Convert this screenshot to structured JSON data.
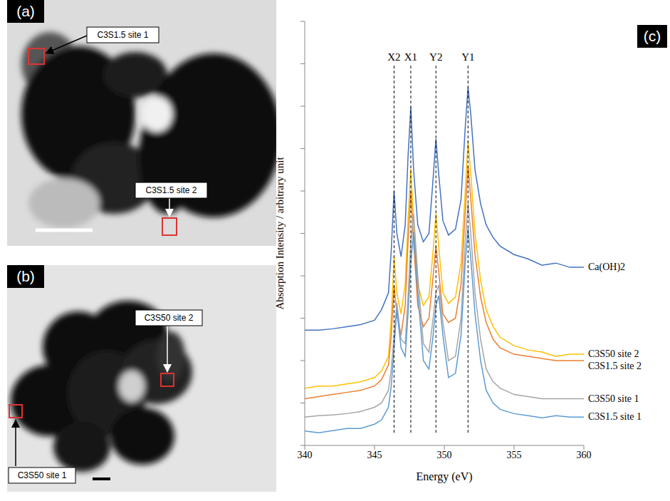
{
  "panels": [
    {
      "letter": "(a)",
      "labels": [
        "C3S1.5 site 1",
        "C3S1.5 site 2"
      ]
    },
    {
      "letter": "(b)",
      "labels": [
        "C3S50 site 2",
        "C3S50 site 1"
      ]
    }
  ],
  "chart_data": {
    "letter": "(c)",
    "type": "line",
    "x_label": "Energy  (eV)",
    "y_label": "Absorption Intensity / arbitrary unit",
    "xlim": [
      340,
      360
    ],
    "xticks": [
      340,
      345,
      350,
      355,
      360
    ],
    "ylim": [
      0,
      10
    ],
    "yticks": [
      0,
      1,
      2,
      3,
      4,
      5,
      6,
      7,
      8,
      9,
      10
    ],
    "tick_labels": "x",
    "x": [
      340,
      341,
      342,
      343,
      344,
      345,
      345.5,
      346,
      346.2,
      346.4,
      346.6,
      346.9,
      347.2,
      347.4,
      347.6,
      347.8,
      348.1,
      348.5,
      348.9,
      349.2,
      349.4,
      349.6,
      349.9,
      350.3,
      350.8,
      351.2,
      351.5,
      351.7,
      351.9,
      352.2,
      352.6,
      353,
      353.5,
      354,
      355,
      356,
      357,
      358,
      359,
      360
    ],
    "series": [
      {
        "name": "Ca(OH)2",
        "color": "#4472c4",
        "values": [
          2.72,
          2.72,
          2.75,
          2.8,
          2.85,
          2.95,
          3.2,
          3.6,
          4.6,
          6.0,
          5.0,
          4.45,
          5.2,
          6.8,
          7.98,
          6.5,
          5.2,
          4.8,
          5.0,
          6.3,
          7.23,
          6.4,
          5.3,
          4.96,
          5.1,
          5.8,
          7.5,
          8.45,
          7.8,
          6.5,
          5.7,
          5.2,
          4.9,
          4.7,
          4.5,
          4.4,
          4.25,
          4.3,
          4.2,
          4.2
        ]
      },
      {
        "name": "C3S50 site 2",
        "color": "#ffc000",
        "values": [
          1.35,
          1.4,
          1.4,
          1.45,
          1.5,
          1.6,
          1.75,
          2.1,
          3.0,
          4.45,
          3.6,
          3.1,
          3.8,
          5.3,
          6.52,
          5.3,
          3.8,
          3.3,
          3.5,
          4.6,
          5.46,
          4.7,
          3.6,
          3.35,
          3.5,
          4.3,
          6.0,
          7.19,
          6.4,
          5.0,
          3.9,
          3.2,
          2.8,
          2.55,
          2.35,
          2.25,
          2.2,
          2.1,
          2.15,
          2.15
        ]
      },
      {
        "name": "C3S1.5 site 2",
        "color": "#ed7d31",
        "values": [
          1.1,
          1.15,
          1.2,
          1.25,
          1.3,
          1.4,
          1.55,
          1.9,
          2.6,
          3.78,
          3.1,
          2.6,
          3.3,
          4.8,
          6.0,
          4.8,
          3.3,
          2.8,
          3.0,
          4.0,
          4.7,
          4.1,
          3.1,
          2.9,
          3.0,
          3.8,
          5.5,
          6.6,
          5.8,
          4.5,
          3.5,
          2.9,
          2.5,
          2.3,
          2.15,
          2.1,
          2.05,
          2.0,
          2.0,
          2.0
        ]
      },
      {
        "name": "C3S50 site 1",
        "color": "#a5a5a5",
        "values": [
          0.67,
          0.7,
          0.72,
          0.75,
          0.8,
          0.9,
          1.0,
          1.3,
          1.8,
          2.6,
          3.36,
          2.5,
          2.4,
          3.5,
          4.8,
          5.46,
          4.0,
          2.4,
          2.2,
          3.0,
          3.6,
          3.78,
          2.9,
          2.0,
          2.1,
          3.0,
          4.8,
          5.71,
          5.0,
          3.6,
          2.5,
          1.8,
          1.5,
          1.35,
          1.2,
          1.15,
          1.1,
          1.1,
          1.1,
          1.1
        ]
      },
      {
        "name": "C3S1.5 site 1",
        "color": "#5b9bd5",
        "values": [
          0.34,
          0.3,
          0.35,
          0.4,
          0.4,
          0.5,
          0.6,
          0.9,
          1.4,
          2.3,
          3.2,
          2.3,
          2.1,
          3.1,
          4.3,
          5.04,
          3.6,
          2.0,
          1.8,
          2.6,
          3.3,
          3.53,
          2.6,
          1.6,
          1.7,
          2.6,
          4.3,
          5.13,
          4.4,
          3.1,
          2.0,
          1.3,
          1.0,
          0.85,
          0.75,
          0.7,
          0.65,
          0.7,
          0.67,
          0.67
        ]
      }
    ],
    "annotations": [
      {
        "text": "X2",
        "x": 346.4
      },
      {
        "text": "X1",
        "x": 347.6
      },
      {
        "text": "Y2",
        "x": 349.4
      },
      {
        "text": "Y1",
        "x": 351.7
      }
    ]
  }
}
